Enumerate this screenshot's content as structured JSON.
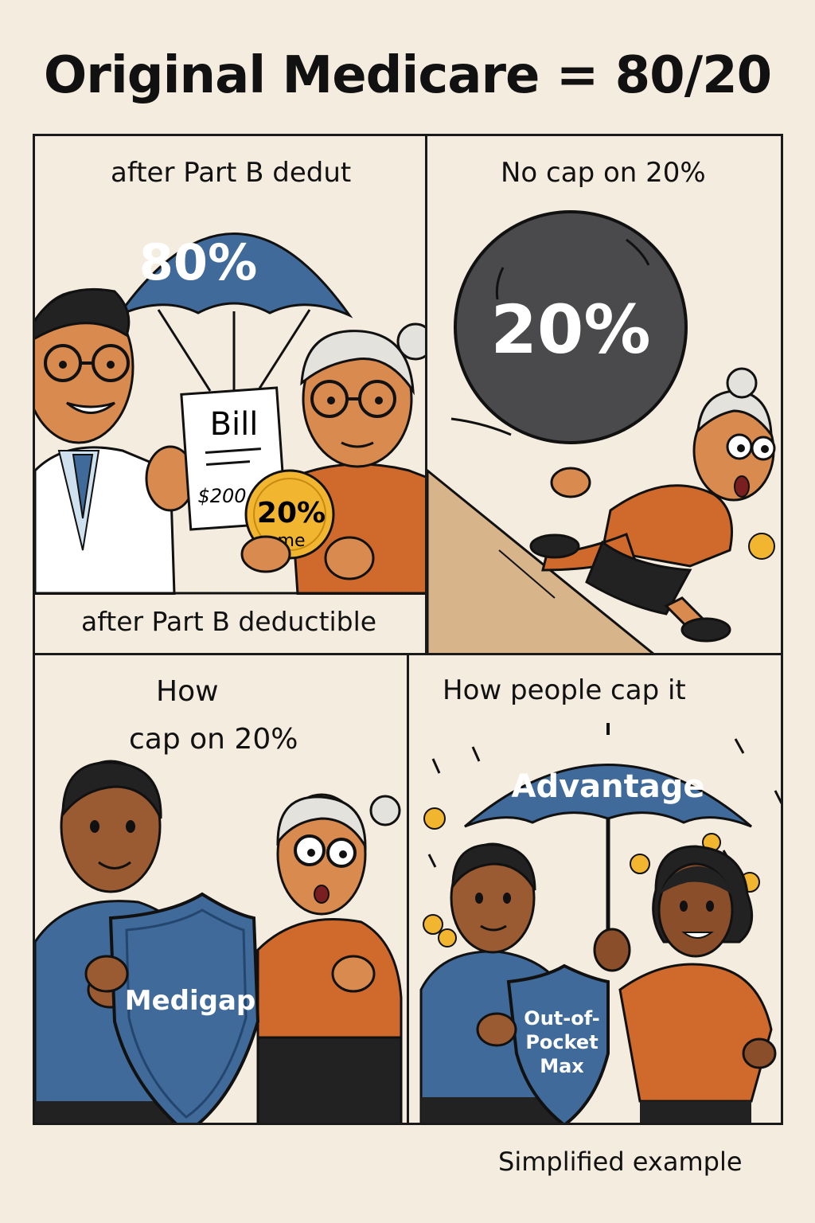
{
  "title": "Original Medicare = 80/20",
  "panel1": {
    "top_text": "after Part B dedut",
    "parachute_label": "80%",
    "bill_title": "Bill",
    "bill_amount": "$200",
    "coin_percent": "20%",
    "coin_me": "me",
    "bottom_text": "after Part B deductible"
  },
  "panel2": {
    "top_text": "No cap on 20%",
    "ball_label": "20%"
  },
  "panel3": {
    "top_text_line1": "How",
    "top_text_line2": "cap on 20%",
    "shield_label": "Medigap"
  },
  "panel4": {
    "top_text": "How people cap it",
    "umbrella_label": "Advantage",
    "shield_line1": "Out-of-",
    "shield_line2": "Pocket",
    "shield_line3": "Max"
  },
  "footer": "Simplified example",
  "colors": {
    "background": "#f4ecdf",
    "blue": "#3f6a99",
    "orange": "#d06a2c",
    "skin": "#d98a4f",
    "dark_ball": "#4a4a4c",
    "gold": "#f2b530",
    "ramp": "#d8b48a"
  }
}
